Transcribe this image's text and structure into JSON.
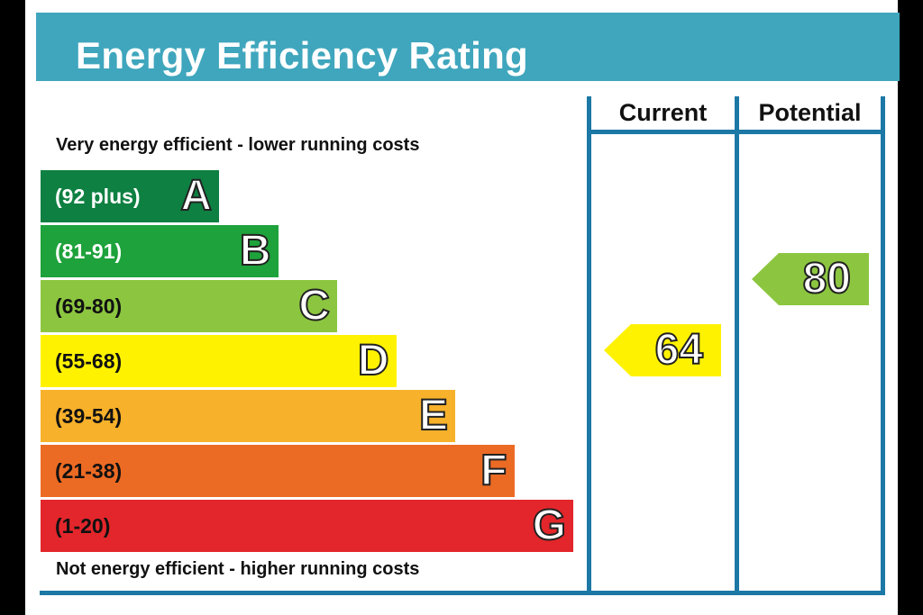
{
  "title": "Energy Efficiency Rating",
  "columns": {
    "current": "Current",
    "potential": "Potential"
  },
  "top_caption": "Very energy efficient - lower running costs",
  "bottom_caption": "Not energy efficient - higher running costs",
  "colors": {
    "header": "#3fa6bd",
    "frame": "#1c78a5"
  },
  "chart_data": {
    "type": "bar",
    "title": "Energy Efficiency Rating",
    "bands": [
      {
        "letter": "A",
        "range": "(92 plus)",
        "color": "#0e8041",
        "text_color": "#ffffff"
      },
      {
        "letter": "B",
        "range": "(81-91)",
        "color": "#1ea23b",
        "text_color": "#ffffff"
      },
      {
        "letter": "C",
        "range": "(69-80)",
        "color": "#8cc640",
        "text_color": "#111111"
      },
      {
        "letter": "D",
        "range": "(55-68)",
        "color": "#fff200",
        "text_color": "#111111"
      },
      {
        "letter": "E",
        "range": "(39-54)",
        "color": "#f7b12a",
        "text_color": "#111111"
      },
      {
        "letter": "F",
        "range": "(21-38)",
        "color": "#ec6b24",
        "text_color": "#111111"
      },
      {
        "letter": "G",
        "range": "(1-20)",
        "color": "#e3262b",
        "text_color": "#111111"
      }
    ],
    "current": {
      "value": 64,
      "band": "D",
      "color": "#fff200"
    },
    "potential": {
      "value": 80,
      "band": "C",
      "color": "#8cc640"
    }
  }
}
